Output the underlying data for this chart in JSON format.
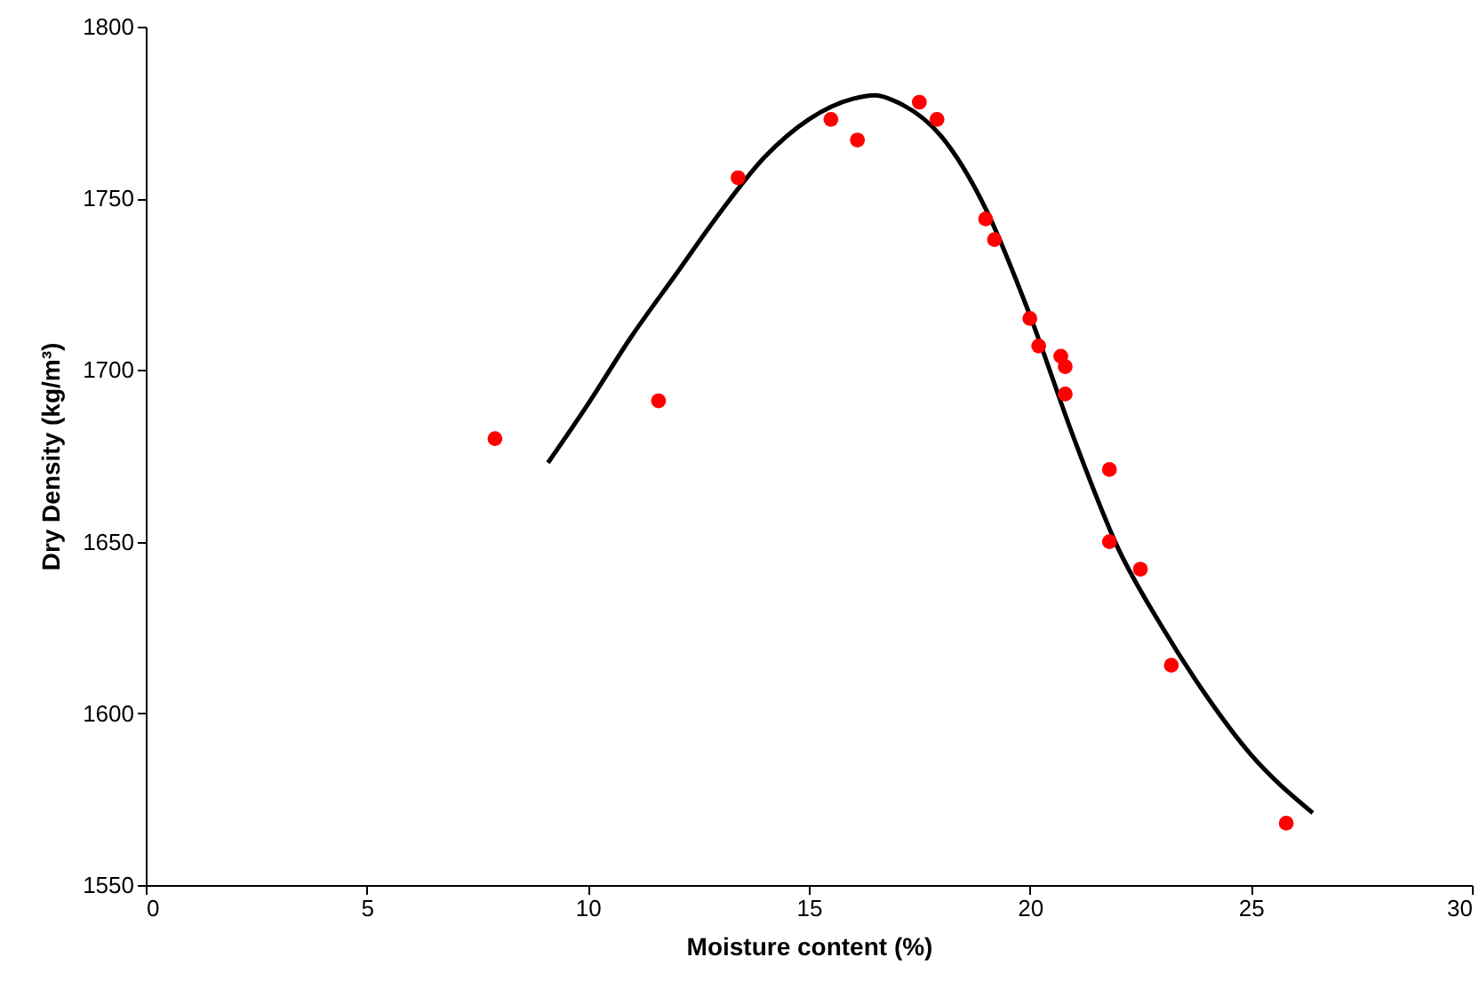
{
  "chart_data": {
    "type": "scatter",
    "xlabel": "Moisture content (%)",
    "ylabel": "Dry Density (kg/m³)",
    "xlim": [
      0,
      30
    ],
    "xticks": [
      0,
      5,
      10,
      15,
      20,
      25,
      30
    ],
    "ylim": [
      1550,
      1800
    ],
    "yticks": [
      1550,
      1600,
      1650,
      1700,
      1750,
      1800
    ],
    "grid": false,
    "series": [
      {
        "type": "line",
        "color": "#000000",
        "line_style": "solid",
        "x": [
          9.1,
          10,
          11,
          12,
          13,
          14,
          15,
          16,
          16.5,
          17,
          18,
          19,
          20,
          21,
          22,
          23,
          24,
          25,
          26.4
        ],
        "values": [
          1673,
          1690,
          1710,
          1728,
          1746,
          1762,
          1773,
          1779,
          1780,
          1778,
          1768,
          1747,
          1716,
          1680,
          1648,
          1625,
          1605,
          1588,
          1571
        ]
      },
      {
        "color": "#ff0000",
        "marker": "circle",
        "x": [
          7.9,
          11.6,
          13.4,
          15.5,
          16.1,
          17.5,
          17.9,
          19.0,
          19.2,
          20.0,
          20.2,
          20.7,
          20.8,
          20.8,
          21.8,
          21.8,
          22.5,
          23.2,
          25.8
        ],
        "values": [
          1680,
          1691,
          1756,
          1773,
          1767,
          1778,
          1773,
          1744,
          1738,
          1715,
          1707,
          1704,
          1701,
          1693,
          1671,
          1650,
          1642,
          1614,
          1568
        ]
      }
    ]
  }
}
